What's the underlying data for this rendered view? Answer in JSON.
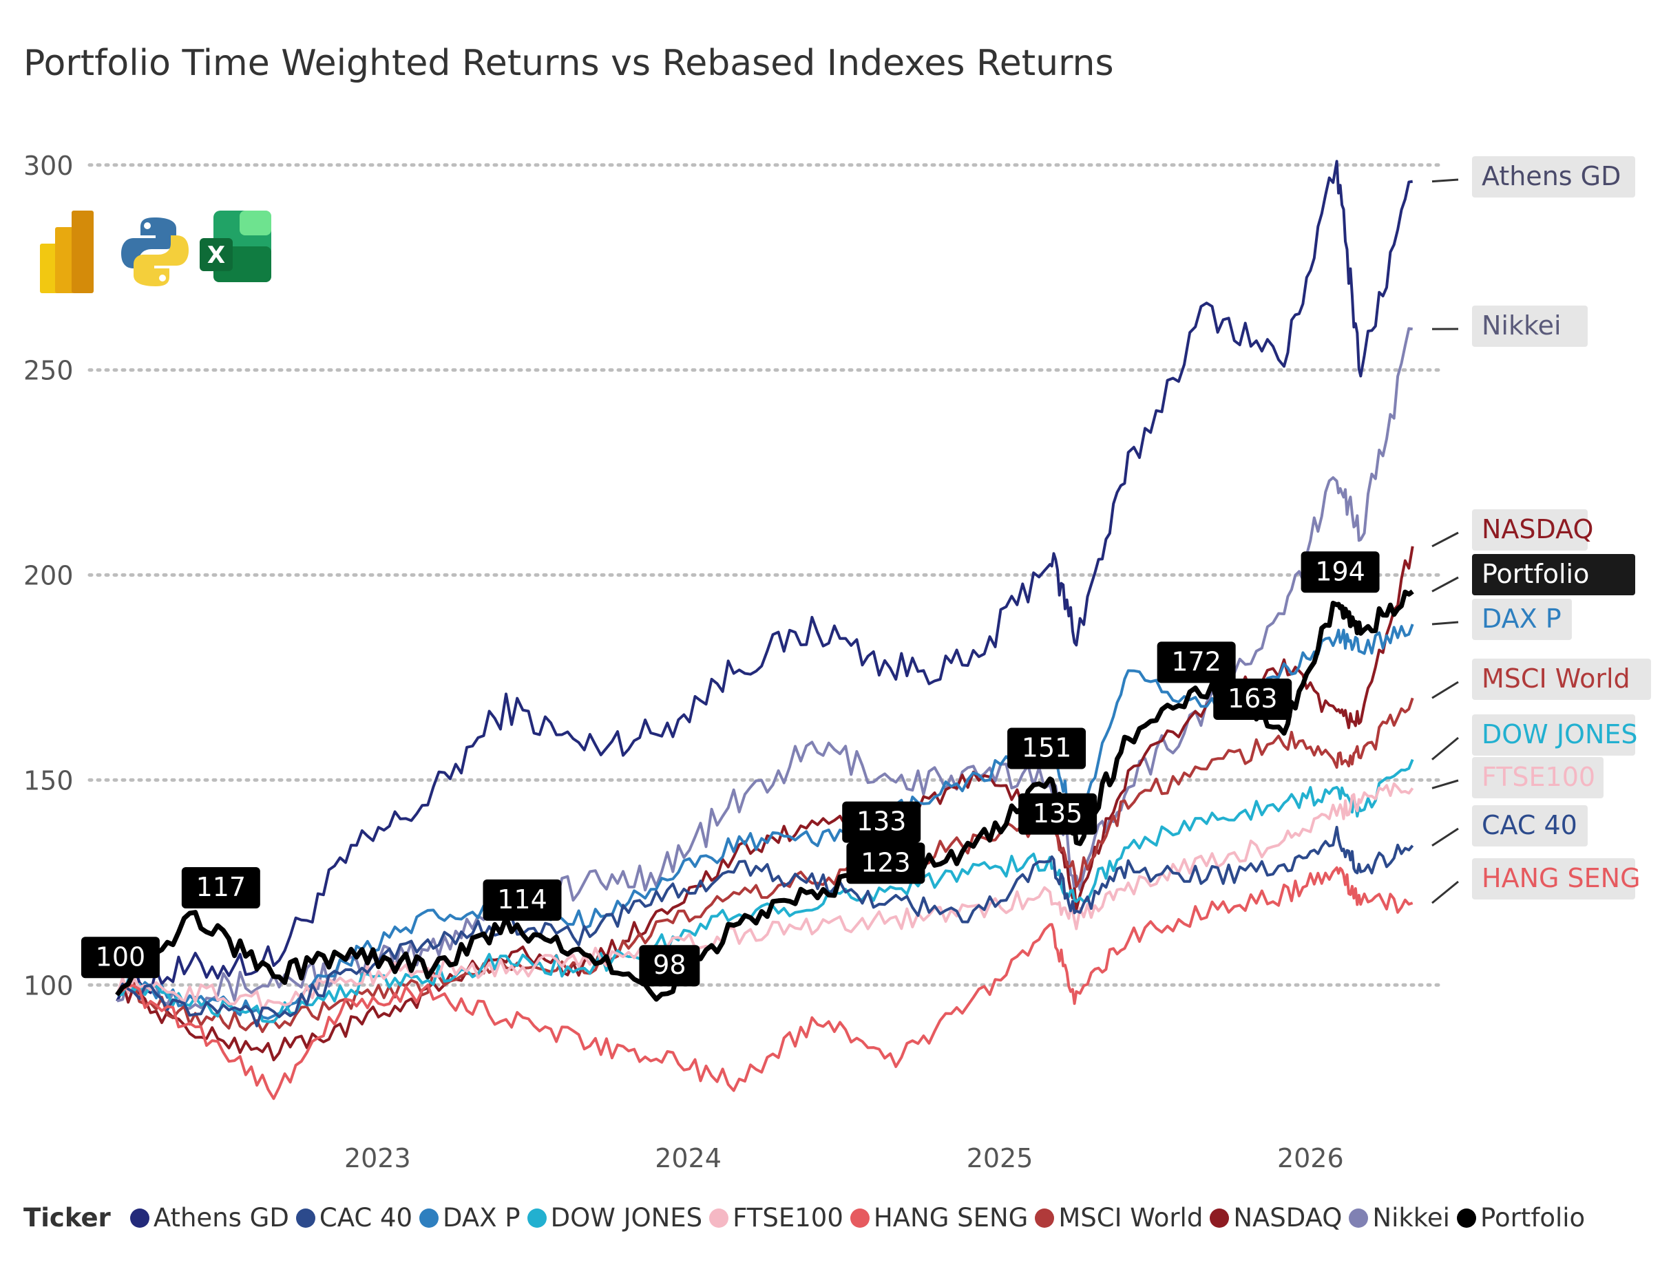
{
  "title": "Portfolio Time Weighted Returns vs Rebased Indexes Returns",
  "app_icons": [
    "power-bi-icon",
    "python-icon",
    "excel-icon"
  ],
  "legend": {
    "title": "Ticker"
  },
  "chart_data": {
    "type": "line",
    "title": "Portfolio Time Weighted Returns vs Rebased Indexes Returns",
    "xlabel": "",
    "ylabel": "",
    "x_range": [
      "2022-03-01",
      "2026-06-01"
    ],
    "ylim": [
      70,
      305
    ],
    "y_ticks": [
      100,
      150,
      200,
      250,
      300
    ],
    "x_ticks": [
      "2023",
      "2024",
      "2025",
      "2026"
    ],
    "grid": "horizontal dotted",
    "legend_position": "bottom",
    "series": [
      {
        "name": "Athens GD",
        "color": "#232a7a",
        "x": [
          "2022-03",
          "2022-06",
          "2022-09",
          "2022-12",
          "2023-03",
          "2023-06",
          "2023-09",
          "2023-12",
          "2024-03",
          "2024-06",
          "2024-09",
          "2024-12",
          "2025-03",
          "2025-04",
          "2025-06",
          "2025-09",
          "2025-12",
          "2026-02",
          "2026-03",
          "2026-05"
        ],
        "y": [
          100,
          104,
          106,
          132,
          145,
          168,
          158,
          162,
          178,
          187,
          177,
          178,
          205,
          185,
          226,
          265,
          252,
          300,
          250,
          296
        ]
      },
      {
        "name": "Nikkei",
        "color": "#8081b3",
        "x": [
          "2022-03",
          "2022-06",
          "2022-09",
          "2022-12",
          "2023-03",
          "2023-06",
          "2023-09",
          "2023-12",
          "2024-03",
          "2024-06",
          "2024-09",
          "2024-12",
          "2025-03",
          "2025-04",
          "2025-06",
          "2025-09",
          "2025-12",
          "2026-02",
          "2026-03",
          "2026-05"
        ],
        "y": [
          100,
          98,
          101,
          104,
          108,
          122,
          124,
          128,
          145,
          158,
          150,
          150,
          152,
          125,
          150,
          168,
          190,
          225,
          210,
          260
        ]
      },
      {
        "name": "NASDAQ",
        "color": "#8e1b22",
        "x": [
          "2022-03",
          "2022-06",
          "2022-09",
          "2022-12",
          "2023-03",
          "2023-06",
          "2023-09",
          "2023-12",
          "2024-03",
          "2024-06",
          "2024-09",
          "2024-12",
          "2025-03",
          "2025-04",
          "2025-06",
          "2025-09",
          "2025-12",
          "2026-02",
          "2026-03",
          "2026-05"
        ],
        "y": [
          100,
          88,
          84,
          90,
          98,
          108,
          104,
          118,
          132,
          140,
          142,
          150,
          142,
          120,
          152,
          168,
          178,
          165,
          165,
          207
        ]
      },
      {
        "name": "Portfolio",
        "color": "#000000",
        "x": [
          "2022-03",
          "2022-06",
          "2022-09",
          "2022-12",
          "2023-03",
          "2023-06",
          "2023-09",
          "2023-12",
          "2024-03",
          "2024-06",
          "2024-09",
          "2024-12",
          "2025-03",
          "2025-04",
          "2025-06",
          "2025-09",
          "2025-12",
          "2026-02",
          "2026-03",
          "2026-05"
        ],
        "y": [
          100,
          117,
          102,
          108,
          104,
          114,
          108,
          98,
          115,
          123,
          128,
          133,
          151,
          135,
          160,
          172,
          163,
          194,
          186,
          196
        ]
      },
      {
        "name": "DAX P",
        "color": "#2e7fbf",
        "x": [
          "2022-03",
          "2022-06",
          "2022-09",
          "2022-12",
          "2023-03",
          "2023-06",
          "2023-09",
          "2023-12",
          "2024-03",
          "2024-06",
          "2024-09",
          "2024-12",
          "2025-03",
          "2025-04",
          "2025-06",
          "2025-09",
          "2025-12",
          "2026-02",
          "2026-03",
          "2026-05"
        ],
        "y": [
          100,
          96,
          93,
          107,
          116,
          118,
          116,
          125,
          135,
          135,
          142,
          150,
          158,
          140,
          175,
          168,
          176,
          185,
          182,
          188
        ]
      },
      {
        "name": "MSCI World",
        "color": "#b03a3a",
        "x": [
          "2022-03",
          "2022-06",
          "2022-09",
          "2022-12",
          "2023-03",
          "2023-06",
          "2023-09",
          "2023-12",
          "2024-03",
          "2024-06",
          "2024-09",
          "2024-12",
          "2025-03",
          "2025-04",
          "2025-06",
          "2025-09",
          "2025-12",
          "2026-02",
          "2026-03",
          "2026-05"
        ],
        "y": [
          100,
          92,
          90,
          96,
          100,
          106,
          104,
          114,
          122,
          126,
          130,
          135,
          140,
          126,
          145,
          153,
          160,
          155,
          156,
          170
        ]
      },
      {
        "name": "DOW JONES",
        "color": "#22b0d0",
        "x": [
          "2022-03",
          "2022-06",
          "2022-09",
          "2022-12",
          "2023-03",
          "2023-06",
          "2023-09",
          "2023-12",
          "2024-03",
          "2024-06",
          "2024-09",
          "2024-12",
          "2025-03",
          "2025-04",
          "2025-06",
          "2025-09",
          "2025-12",
          "2026-02",
          "2026-03",
          "2026-05"
        ],
        "y": [
          100,
          95,
          93,
          100,
          102,
          106,
          104,
          110,
          118,
          120,
          124,
          128,
          130,
          120,
          134,
          140,
          145,
          147,
          143,
          155
        ]
      },
      {
        "name": "FTSE100",
        "color": "#f5b8c4",
        "x": [
          "2022-03",
          "2022-06",
          "2022-09",
          "2022-12",
          "2023-03",
          "2023-06",
          "2023-09",
          "2023-12",
          "2024-03",
          "2024-06",
          "2024-09",
          "2024-12",
          "2025-03",
          "2025-04",
          "2025-06",
          "2025-09",
          "2025-12",
          "2026-02",
          "2026-03",
          "2026-05"
        ],
        "y": [
          100,
          98,
          96,
          102,
          104,
          104,
          106,
          110,
          112,
          115,
          116,
          118,
          122,
          116,
          124,
          130,
          135,
          142,
          145,
          148
        ]
      },
      {
        "name": "CAC 40",
        "color": "#2c4a8c",
        "x": [
          "2022-03",
          "2022-06",
          "2022-09",
          "2022-12",
          "2023-03",
          "2023-06",
          "2023-09",
          "2023-12",
          "2024-03",
          "2024-06",
          "2024-09",
          "2024-12",
          "2025-03",
          "2025-04",
          "2025-06",
          "2025-09",
          "2025-12",
          "2026-02",
          "2026-03",
          "2026-05"
        ],
        "y": [
          100,
          94,
          92,
          104,
          110,
          115,
          112,
          122,
          128,
          125,
          120,
          117,
          130,
          118,
          128,
          127,
          128,
          136,
          128,
          134
        ]
      },
      {
        "name": "HANG SENG",
        "color": "#e65a5f",
        "x": [
          "2022-03",
          "2022-06",
          "2022-09",
          "2022-12",
          "2023-03",
          "2023-06",
          "2023-09",
          "2023-12",
          "2024-03",
          "2024-06",
          "2024-09",
          "2024-12",
          "2025-03",
          "2025-04",
          "2025-06",
          "2025-09",
          "2025-12",
          "2026-02",
          "2026-03",
          "2026-05"
        ],
        "y": [
          100,
          90,
          74,
          96,
          98,
          92,
          86,
          82,
          76,
          92,
          82,
          96,
          115,
          96,
          112,
          118,
          122,
          128,
          120,
          120
        ]
      }
    ],
    "portfolio_labels": [
      {
        "x": "2022-03-05",
        "y": 100,
        "text": "100"
      },
      {
        "x": "2022-07-01",
        "y": 117,
        "text": "117"
      },
      {
        "x": "2023-06-20",
        "y": 114,
        "text": "114"
      },
      {
        "x": "2023-12-10",
        "y": 98,
        "text": "98"
      },
      {
        "x": "2024-08-15",
        "y": 133,
        "text": "133"
      },
      {
        "x": "2024-08-20",
        "y": 123,
        "text": "123"
      },
      {
        "x": "2025-02-25",
        "y": 151,
        "text": "151"
      },
      {
        "x": "2025-03-10",
        "y": 135,
        "text": "135"
      },
      {
        "x": "2025-08-20",
        "y": 172,
        "text": "172"
      },
      {
        "x": "2025-10-25",
        "y": 163,
        "text": "163"
      },
      {
        "x": "2026-02-05",
        "y": 194,
        "text": "194"
      }
    ],
    "end_labels": [
      {
        "series": "Athens GD",
        "text": "Athens GD",
        "color": "#4a4a6a",
        "bg": "#e6e6e6"
      },
      {
        "series": "Nikkei",
        "text": "Nikkei",
        "color": "#5a5a7a",
        "bg": "#e6e6e6"
      },
      {
        "series": "NASDAQ",
        "text": "NASDAQ",
        "color": "#8e1b22",
        "bg": "#e6e6e6"
      },
      {
        "series": "Portfolio",
        "text": "Portfolio",
        "color": "#ffffff",
        "bg": "#1a1a1a"
      },
      {
        "series": "DAX P",
        "text": "DAX P",
        "color": "#2e7fbf",
        "bg": "#e6e6e6"
      },
      {
        "series": "MSCI World",
        "text": "MSCI World",
        "color": "#b03a3a",
        "bg": "#e6e6e6"
      },
      {
        "series": "DOW JONES",
        "text": "DOW JONES",
        "color": "#22b0d0",
        "bg": "#e6e6e6"
      },
      {
        "series": "FTSE100",
        "text": "FTSE100",
        "color": "#f5b8c4",
        "bg": "#e6e6e6"
      },
      {
        "series": "CAC 40",
        "text": "CAC 40",
        "color": "#2c4a8c",
        "bg": "#e6e6e6"
      },
      {
        "series": "HANG SENG",
        "text": "HANG SENG",
        "color": "#e65a5f",
        "bg": "#e6e6e6"
      }
    ]
  }
}
